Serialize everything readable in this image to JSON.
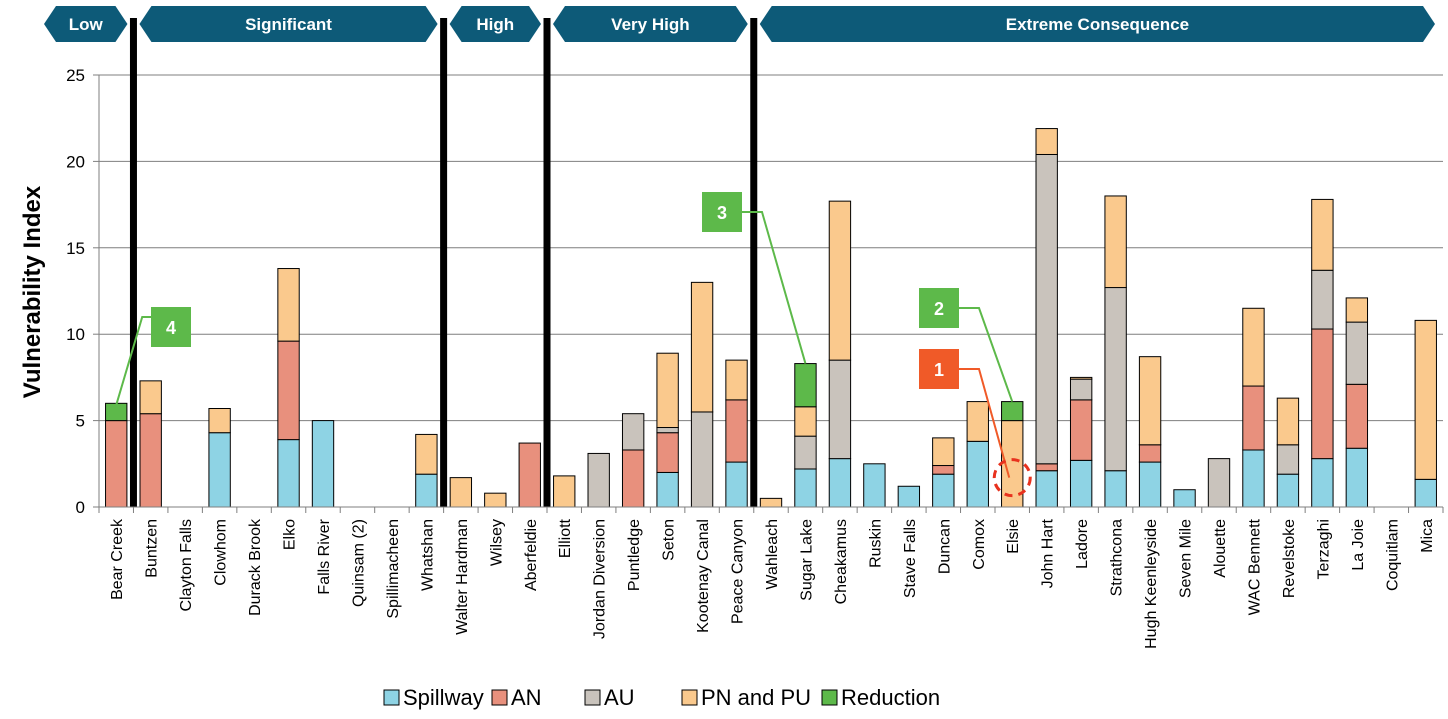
{
  "chart_data": {
    "type": "bar",
    "stacked": true,
    "title": "",
    "xlabel": "",
    "ylabel": "Vulnerability Index",
    "ylim": [
      0,
      25
    ],
    "yticks": [
      0,
      5,
      10,
      15,
      20,
      25
    ],
    "grid": true,
    "legend_position": "bottom",
    "categories": [
      "Bear Creek",
      "Buntzen",
      "Clayton Falls",
      "Clowhom",
      "Durack Brook",
      "Elko",
      "Falls River",
      "Quinsam (2)",
      "Spillimacheen",
      "Whatshan",
      "Walter Hardman",
      "Wilsey",
      "Aberfeldie",
      "Elliott",
      "Jordan Diversion",
      "Puntledge",
      "Seton",
      "Kootenay Canal",
      "Peace Canyon",
      "Wahleach",
      "Sugar Lake",
      "Cheakamus",
      "Ruskin",
      "Stave Falls",
      "Duncan",
      "Comox",
      "Elsie",
      "John Hart",
      "Ladore",
      "Strathcona",
      "Hugh Keenleyside",
      "Seven Mile",
      "Alouette",
      "WAC Bennett",
      "Revelstoke",
      "Terzaghi",
      "La Joie",
      "Coquitlam",
      "Mica"
    ],
    "series": [
      {
        "name": "Spillway",
        "color": "#8ED3E4",
        "values": [
          0,
          0,
          0,
          4.3,
          0,
          3.9,
          5.0,
          0,
          0,
          1.9,
          0,
          0,
          0,
          0,
          0,
          0,
          2.0,
          0,
          2.6,
          0,
          2.2,
          2.8,
          2.5,
          1.2,
          1.9,
          3.8,
          0,
          2.1,
          2.7,
          2.1,
          2.6,
          1.0,
          0,
          3.3,
          1.9,
          2.8,
          3.4,
          0,
          1.6
        ]
      },
      {
        "name": "AN",
        "color": "#E8907D",
        "values": [
          5.0,
          5.4,
          0,
          0,
          0,
          5.7,
          0,
          0,
          0,
          0,
          0,
          0,
          3.7,
          0,
          0,
          3.3,
          2.3,
          0,
          3.6,
          0,
          0,
          0,
          0,
          0,
          0.5,
          0,
          0,
          0.4,
          3.5,
          0,
          1.0,
          0,
          0,
          3.7,
          0,
          7.5,
          3.7,
          0,
          0
        ]
      },
      {
        "name": "AU",
        "color": "#C9C3BC",
        "values": [
          0,
          0,
          0,
          0,
          0,
          0,
          0,
          0,
          0,
          0,
          0,
          0,
          0,
          0,
          3.1,
          2.1,
          0.3,
          5.5,
          0,
          0,
          1.9,
          5.7,
          0,
          0,
          0,
          0,
          0,
          17.9,
          1.2,
          10.6,
          0,
          0,
          2.8,
          0,
          1.7,
          3.4,
          3.6,
          0,
          0
        ]
      },
      {
        "name": "PN and PU",
        "color": "#FAC98D",
        "values": [
          0,
          1.9,
          0,
          1.4,
          0,
          4.2,
          0,
          0,
          0,
          2.3,
          1.7,
          0.8,
          0,
          1.8,
          0,
          0,
          4.3,
          7.5,
          2.3,
          0.5,
          1.7,
          9.2,
          0,
          0,
          1.6,
          2.3,
          5.0,
          1.5,
          0.1,
          5.3,
          5.1,
          0,
          0,
          4.5,
          2.7,
          4.1,
          1.4,
          0,
          9.2
        ]
      },
      {
        "name": "Reduction",
        "color": "#5DB94A",
        "values": [
          1.0,
          0,
          0,
          0,
          0,
          0,
          0,
          0,
          0,
          0,
          0,
          0,
          0,
          0,
          0,
          0,
          0,
          0,
          0,
          0,
          2.5,
          0,
          0,
          0,
          0,
          0,
          1.1,
          0,
          0,
          0,
          0,
          0,
          0,
          0,
          0,
          0,
          0,
          0,
          0
        ]
      }
    ],
    "consequence_bands": [
      {
        "label": "Low",
        "from": 0,
        "to": 0
      },
      {
        "label": "Significant",
        "from": 1,
        "to": 9
      },
      {
        "label": "High",
        "from": 10,
        "to": 12
      },
      {
        "label": "Very High",
        "from": 13,
        "to": 18
      },
      {
        "label": "Extreme Consequence",
        "from": 19,
        "to": 38
      }
    ],
    "band_color": "#0D5A78",
    "callouts": [
      {
        "label": "1",
        "color": "#F05A28",
        "category": "Elsie"
      },
      {
        "label": "2",
        "color": "#5DB94A",
        "category": "Elsie"
      },
      {
        "label": "3",
        "color": "#5DB94A",
        "category": "Sugar Lake"
      },
      {
        "label": "4",
        "color": "#5DB94A",
        "category": "Bear Creek"
      }
    ]
  }
}
